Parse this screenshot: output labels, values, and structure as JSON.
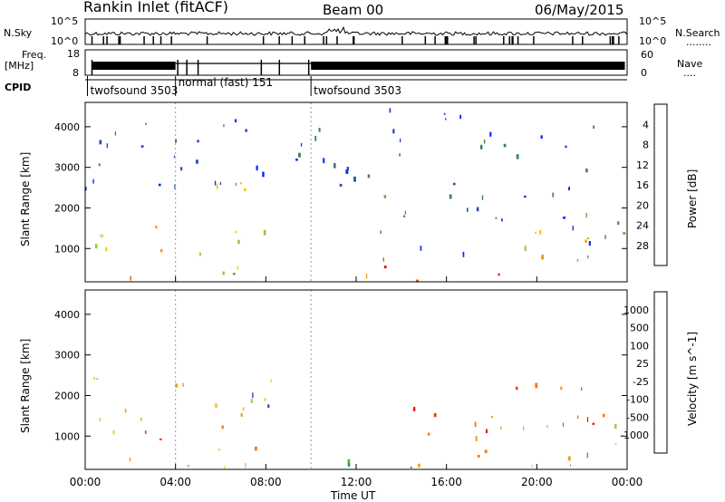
{
  "header": {
    "title": "Rankin Inlet (fitACF)",
    "beam": "Beam 00",
    "date": "06/May/2015"
  },
  "top_panels": {
    "nsky_label": "N.Sky",
    "nsearch_label": "N.Search",
    "nsky_ticks": [
      "10^5",
      "10^0"
    ],
    "nsearch_ticks": [
      "10^5",
      "10^0"
    ],
    "freq_label": "Freq.",
    "freq_unit": "[MHz]",
    "freq_ticks": [
      18,
      8
    ],
    "nave_label": "Nave",
    "nave_ticks": [
      60,
      0
    ],
    "cpid_label": "CPID",
    "cpid_segments": [
      {
        "label": "twofsound 3503",
        "start": 0.1,
        "end": 4.0
      },
      {
        "label": "normal (fast) 151",
        "start": 4.0,
        "end": 10.0
      },
      {
        "label": "twofsound 3503",
        "start": 10.0,
        "end": 24.0
      }
    ]
  },
  "chart_data": [
    {
      "type": "heatmap",
      "name": "power-panel",
      "ylabel": "Slant Range [km]",
      "yticks": [
        1000,
        2000,
        3000,
        4000
      ],
      "ylim": [
        180,
        4600
      ],
      "xlim": [
        0,
        24
      ],
      "colorbar": {
        "label": "Power [dB]",
        "ticks": [
          "4",
          "8",
          "12",
          "16",
          "20",
          "24",
          "28"
        ],
        "colors": [
          "#0a28ff",
          "#2850b4",
          "#3c7f5a",
          "#5aa032",
          "#96c83c",
          "#fac81e",
          "#ff9600",
          "#f06400",
          "#ff2800",
          "#e60000"
        ]
      },
      "regions": [
        {
          "t0": 0.3,
          "t1": 1.0,
          "r0": 200,
          "r1": 800,
          "level": 0.9
        },
        {
          "t0": 0.4,
          "t1": 3.6,
          "r0": 900,
          "r1": 2500,
          "level": 0.55
        },
        {
          "t0": 1.0,
          "t1": 2.5,
          "r0": 250,
          "r1": 600,
          "level": 0.75
        },
        {
          "t0": 5.0,
          "t1": 8.6,
          "r0": 200,
          "r1": 2800,
          "level": 0.5
        },
        {
          "t0": 5.3,
          "t1": 6.0,
          "r0": 200,
          "r1": 700,
          "level": 0.95
        },
        {
          "t0": 9.8,
          "t1": 13.5,
          "r0": 200,
          "r1": 800,
          "level": 0.65
        },
        {
          "t0": 13.2,
          "t1": 18.5,
          "r0": 200,
          "r1": 700,
          "level": 1.0
        },
        {
          "t0": 13.0,
          "t1": 24.0,
          "r0": 800,
          "r1": 2500,
          "level": 0.2
        },
        {
          "t0": 18.5,
          "t1": 24.0,
          "r0": 200,
          "r1": 1500,
          "level": 0.5
        },
        {
          "t0": 0.0,
          "t1": 24.0,
          "r0": 2500,
          "r1": 4500,
          "level": 0.1
        }
      ]
    },
    {
      "type": "heatmap",
      "name": "velocity-panel",
      "ylabel": "Slant Range [km]",
      "yticks": [
        1000,
        2000,
        3000,
        4000
      ],
      "ylim": [
        180,
        4600
      ],
      "xlim": [
        0,
        24
      ],
      "xticks": [
        "00:00",
        "04:00",
        "08:00",
        "12:00",
        "16:00",
        "20:00",
        "00:00"
      ],
      "xlabel": "Time UT",
      "colorbar": {
        "label": "Velocity [m s^-1]",
        "ticks": [
          "1000",
          "500",
          "100",
          "25",
          "-25",
          "-100",
          "-500",
          "-1000"
        ],
        "colors": [
          "#2846c8",
          "#2864b4",
          "#3c8c50",
          "#5ab43c",
          "#a0d250",
          "#c8c8c8",
          "#fac83c",
          "#f0a028",
          "#ff7800",
          "#f03c14",
          "#e60000"
        ]
      },
      "regions": [
        {
          "t0": 0.2,
          "t1": 4.0,
          "r0": 1200,
          "r1": 2600,
          "level": 0.55
        },
        {
          "t0": 0.3,
          "t1": 3.6,
          "r0": 200,
          "r1": 1200,
          "level": 0.75
        },
        {
          "t0": 4.0,
          "t1": 8.6,
          "r0": 200,
          "r1": 2800,
          "level": 0.6
        },
        {
          "t0": 7.3,
          "t1": 8.5,
          "r0": 500,
          "r1": 2200,
          "level": 0.05
        },
        {
          "t0": 9.8,
          "t1": 13.0,
          "r0": 200,
          "r1": 900,
          "level": 0.3
        },
        {
          "t0": 13.2,
          "t1": 18.5,
          "r0": 250,
          "r1": 900,
          "level": 0.7
        },
        {
          "t0": 13.3,
          "t1": 24.0,
          "r0": 900,
          "r1": 2400,
          "level": 0.82
        },
        {
          "t0": 18.5,
          "t1": 24.0,
          "r0": 200,
          "r1": 1400,
          "level": 0.5
        }
      ]
    }
  ]
}
